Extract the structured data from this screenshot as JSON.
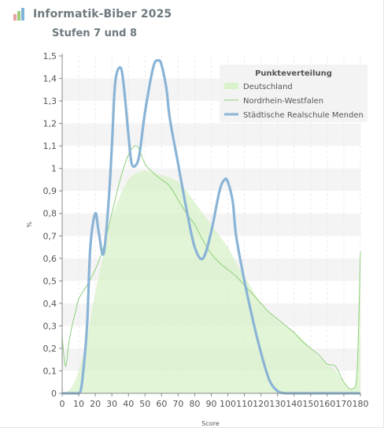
{
  "header": {
    "title": "Informatik-Biber 2025",
    "subtitle": "Stufen 7 und 8",
    "logo_icon": "bar-chart-logo-icon"
  },
  "chart_data": {
    "type": "area",
    "xlabel": "Score",
    "ylabel": "%",
    "xlim": [
      0,
      180
    ],
    "ylim": [
      0,
      1.5
    ],
    "x_ticks": [
      0,
      10,
      20,
      30,
      40,
      50,
      60,
      70,
      80,
      90,
      100,
      110,
      120,
      130,
      140,
      150,
      160,
      170,
      180
    ],
    "y_ticks": [
      0,
      0.1,
      0.2,
      0.3,
      0.4,
      0.5,
      0.6,
      0.7,
      0.8,
      0.9,
      1,
      1.1,
      1.2,
      1.3,
      1.4,
      1.5
    ],
    "y_tick_labels": [
      "0",
      "0,1",
      "0,2",
      "0,3",
      "0,4",
      "0,5",
      "0,6",
      "0,7",
      "0,8",
      "0,9",
      "1",
      "1,1",
      "1,2",
      "1,3",
      "1,4",
      "1,5"
    ],
    "grid": "horizontal bands, vertical dashed lines",
    "legend": {
      "title": "Punkteverteilung",
      "placement": "top-right"
    },
    "series": [
      {
        "name": "Deutschland",
        "style": "area",
        "color": "#d9f2c9",
        "x": [
          0,
          5,
          10,
          15,
          20,
          25,
          30,
          35,
          40,
          45,
          50,
          55,
          60,
          65,
          70,
          75,
          80,
          85,
          90,
          95,
          100,
          105,
          110,
          115,
          120,
          125,
          130,
          135,
          140,
          145,
          150,
          155,
          160,
          165,
          170,
          175,
          178,
          180
        ],
        "values": [
          0,
          0.02,
          0.1,
          0.25,
          0.45,
          0.62,
          0.78,
          0.88,
          0.95,
          0.98,
          0.99,
          0.98,
          0.97,
          0.96,
          0.94,
          0.9,
          0.85,
          0.8,
          0.75,
          0.7,
          0.65,
          0.58,
          0.52,
          0.46,
          0.4,
          0.36,
          0.32,
          0.3,
          0.27,
          0.24,
          0.2,
          0.16,
          0.13,
          0.1,
          0.05,
          0.02,
          0.1,
          0.6
        ]
      },
      {
        "name": "Nordrhein-Westfalen",
        "style": "line",
        "color": "#8fcf7c",
        "x": [
          0,
          2,
          4,
          6,
          8,
          10,
          15,
          20,
          25,
          30,
          35,
          40,
          45,
          50,
          55,
          60,
          65,
          70,
          75,
          80,
          85,
          90,
          95,
          100,
          105,
          110,
          115,
          120,
          125,
          130,
          135,
          140,
          145,
          150,
          155,
          160,
          165,
          170,
          175,
          178,
          180
        ],
        "values": [
          0.25,
          0.12,
          0.22,
          0.3,
          0.36,
          0.42,
          0.48,
          0.55,
          0.65,
          0.8,
          0.95,
          1.06,
          1.1,
          1.02,
          0.98,
          0.95,
          0.92,
          0.86,
          0.8,
          0.75,
          0.68,
          0.62,
          0.58,
          0.55,
          0.52,
          0.48,
          0.44,
          0.4,
          0.36,
          0.33,
          0.3,
          0.27,
          0.23,
          0.2,
          0.17,
          0.13,
          0.12,
          0.05,
          0.02,
          0.1,
          0.63
        ]
      },
      {
        "name": "Städtische Realschule Menden",
        "style": "line",
        "color": "#8ab4d6",
        "x": [
          0,
          5,
          10,
          12,
          15,
          17,
          20,
          22,
          25,
          28,
          30,
          32,
          35,
          37,
          40,
          42,
          45,
          47,
          50,
          55,
          58,
          60,
          63,
          65,
          70,
          75,
          80,
          85,
          90,
          95,
          98,
          100,
          103,
          105,
          110,
          115,
          120,
          125,
          130,
          135,
          140,
          145,
          150,
          160,
          170,
          180
        ],
        "values": [
          0,
          0,
          0,
          0.05,
          0.3,
          0.65,
          0.8,
          0.72,
          0.62,
          0.85,
          1.1,
          1.38,
          1.45,
          1.38,
          1.15,
          1.02,
          1.02,
          1.08,
          1.25,
          1.45,
          1.48,
          1.46,
          1.35,
          1.22,
          1.02,
          0.82,
          0.65,
          0.6,
          0.72,
          0.9,
          0.95,
          0.94,
          0.85,
          0.7,
          0.5,
          0.33,
          0.18,
          0.06,
          0.01,
          0,
          0,
          0,
          0,
          0,
          0,
          0
        ]
      }
    ]
  }
}
